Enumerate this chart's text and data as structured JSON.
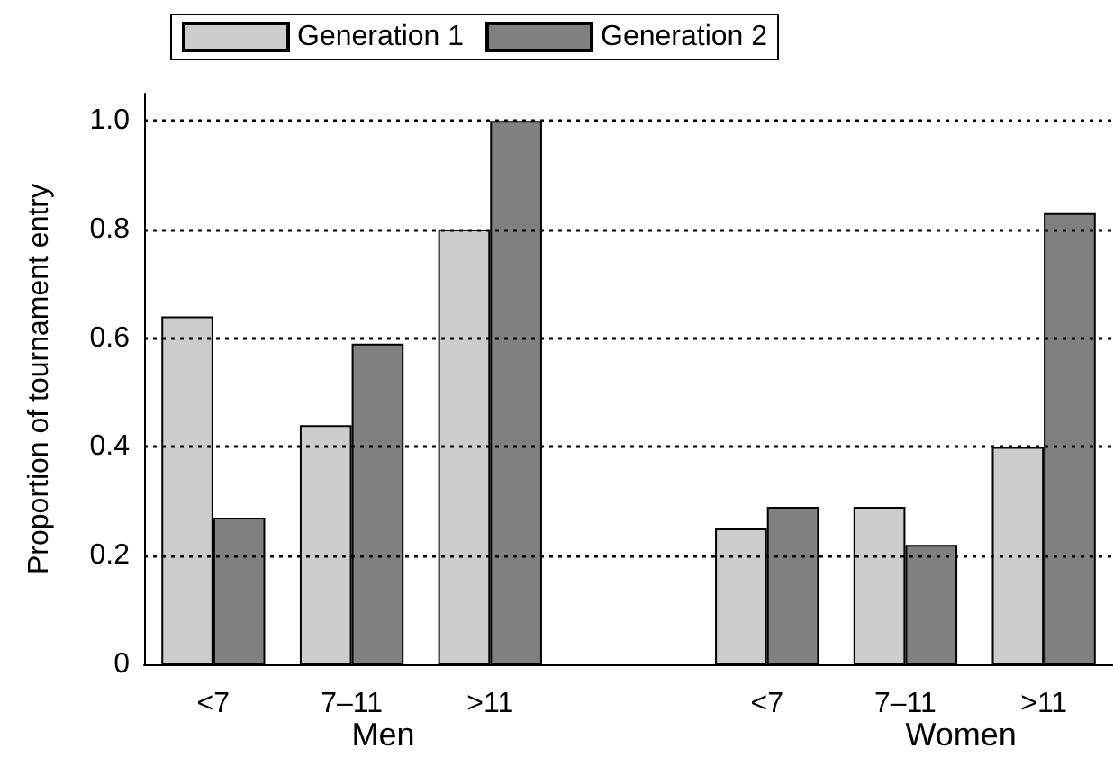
{
  "chart_data": {
    "type": "bar",
    "ylabel": "Proportion of tournament entry",
    "categories": [
      "<7",
      "7–11",
      ">11",
      null,
      "<7",
      "7–11",
      ">11"
    ],
    "series": [
      {
        "name": "Generation 1",
        "color": "#cccccc",
        "values": [
          0.64,
          0.44,
          0.8,
          null,
          0.25,
          0.29,
          0.4
        ]
      },
      {
        "name": "Generation 2",
        "color": "#808080",
        "values": [
          0.27,
          0.59,
          1.0,
          null,
          0.29,
          0.22,
          0.83
        ]
      }
    ],
    "annotations": [
      "Men",
      "Women"
    ],
    "ylim": [
      0,
      1.05
    ],
    "yticks": [
      0,
      {
        "value": 0.2,
        "label": "0.2"
      },
      {
        "value": 0.4,
        "label": "0.4"
      },
      {
        "value": 0.6,
        "label": "0.6"
      },
      {
        "value": 0.8,
        "label": "0.8"
      },
      {
        "value": 1,
        "label": "1.0"
      }
    ],
    "grid": "y",
    "legend": "top left"
  }
}
